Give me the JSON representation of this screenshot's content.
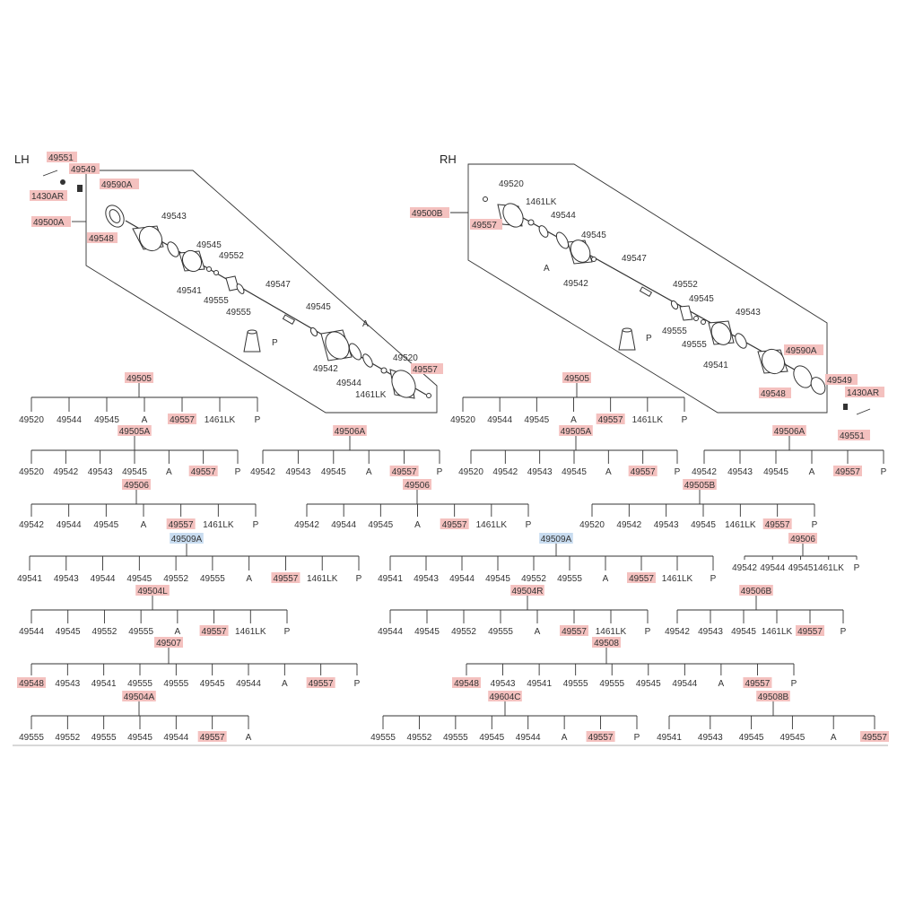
{
  "side_labels": {
    "left": "LH",
    "right": "RH"
  },
  "colors": {
    "highlight_red": "#f4c1bf",
    "highlight_blue": "#c8dcf0",
    "line": "#333333"
  },
  "lh_callouts": [
    "49551",
    "49549",
    "1430AR",
    "49590A",
    "49500A",
    "49548",
    "49543",
    "49545",
    "49552",
    "49541",
    "49555",
    "49555",
    "49547",
    "49545",
    "A",
    "P",
    "49542",
    "49520",
    "49544",
    "49557",
    "1461LK"
  ],
  "rh_callouts": [
    "49520",
    "1461LK",
    "49500B",
    "49557",
    "49544",
    "A",
    "49545",
    "49542",
    "49547",
    "49552",
    "49545",
    "49555",
    "49543",
    "49555",
    "49541",
    "P",
    "49590A",
    "49548",
    "49549",
    "1430AR",
    "49551"
  ],
  "trees": [
    {
      "parent": "49505",
      "items": [
        "49520",
        "49544",
        "49545",
        "A",
        "49557",
        "1461LK",
        "P"
      ]
    },
    {
      "parent": "49505",
      "items": [
        "49520",
        "49544",
        "49545",
        "A",
        "49557",
        "1461LK",
        "P"
      ]
    },
    {
      "parent": "49505A",
      "items": [
        "49520",
        "49542",
        "49543",
        "49545",
        "A",
        "49557",
        "P"
      ]
    },
    {
      "parent": "49506A",
      "items": [
        "49542",
        "49543",
        "49545",
        "A",
        "49557",
        "P"
      ]
    },
    {
      "parent": "49505A",
      "items": [
        "49520",
        "49542",
        "49543",
        "49545",
        "A",
        "49557",
        "P"
      ]
    },
    {
      "parent": "49506A",
      "items": [
        "49542",
        "49543",
        "49545",
        "A",
        "49557",
        "P"
      ]
    },
    {
      "parent": "49506",
      "items": [
        "49542",
        "49544",
        "49545",
        "A",
        "49557",
        "1461LK",
        "P"
      ]
    },
    {
      "parent": "49506",
      "items": [
        "49542",
        "49544",
        "49545",
        "A",
        "49557",
        "1461LK",
        "P"
      ]
    },
    {
      "parent": "49505B",
      "items": [
        "49520",
        "49542",
        "49543",
        "49545",
        "1461LK",
        "49557",
        "P"
      ]
    },
    {
      "parent": "49509A",
      "items": [
        "49541",
        "49543",
        "49544",
        "49545",
        "49552",
        "49555",
        "A",
        "49557",
        "1461LK",
        "P"
      ]
    },
    {
      "parent": "49509A",
      "items": [
        "49541",
        "49543",
        "49544",
        "49545",
        "49552",
        "49555",
        "A",
        "49557",
        "1461LK",
        "P"
      ]
    },
    {
      "parent": "49506",
      "items": [
        "49542",
        "49544",
        "49545",
        "1461LK",
        "P"
      ]
    },
    {
      "parent": "49504L",
      "items": [
        "49544",
        "49545",
        "49552",
        "49555",
        "A",
        "49557",
        "1461LK",
        "P"
      ]
    },
    {
      "parent": "49504R",
      "items": [
        "49544",
        "49545",
        "49552",
        "49555",
        "A",
        "49557",
        "1461LK",
        "P"
      ]
    },
    {
      "parent": "49506B",
      "items": [
        "49542",
        "49543",
        "49545",
        "1461LK",
        "49557",
        "P"
      ]
    },
    {
      "parent": "49507",
      "items": [
        "49548",
        "49543",
        "49541",
        "49555",
        "49555",
        "49545",
        "49544",
        "A",
        "49557",
        "P"
      ]
    },
    {
      "parent": "49508",
      "items": [
        "49548",
        "49543",
        "49541",
        "49555",
        "49555",
        "49545",
        "49544",
        "A",
        "49557",
        "P"
      ]
    },
    {
      "parent": "49504A",
      "items": [
        "49555",
        "49552",
        "49555",
        "49545",
        "49544",
        "49557",
        "A"
      ]
    },
    {
      "parent": "49604C",
      "items": [
        "49555",
        "49552",
        "49555",
        "49545",
        "49544",
        "A",
        "49557",
        "P"
      ]
    },
    {
      "parent": "49508B",
      "items": [
        "49541",
        "49543",
        "49545",
        "49545",
        "A",
        "49557"
      ]
    }
  ]
}
